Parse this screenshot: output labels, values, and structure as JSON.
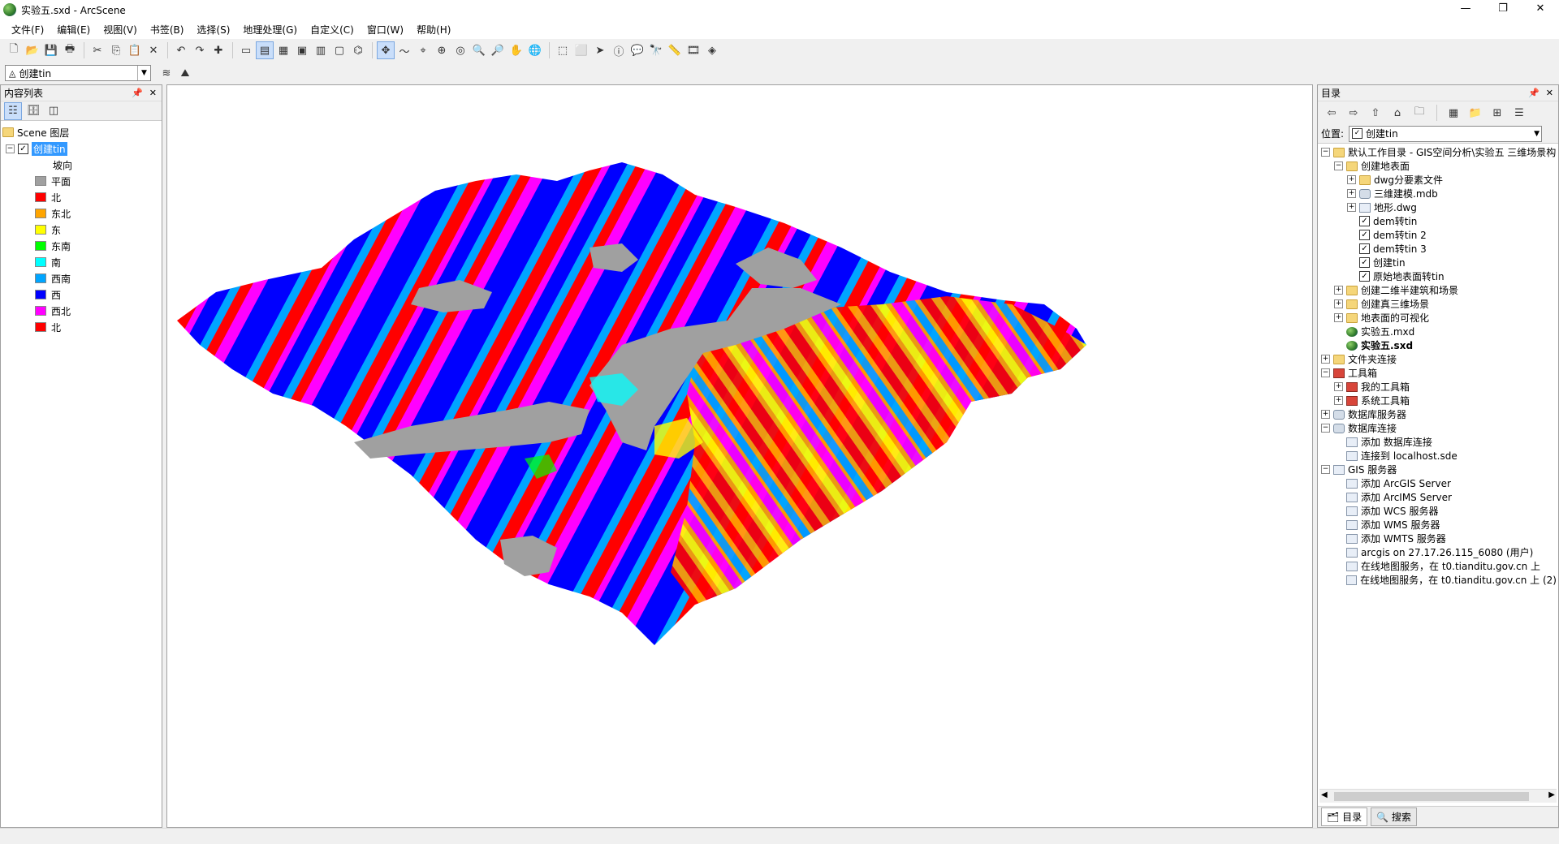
{
  "window": {
    "title": "实验五.sxd - ArcScene",
    "minimize": "—",
    "maximize": "❐",
    "close": "✕"
  },
  "menu": [
    "文件(F)",
    "编辑(E)",
    "视图(V)",
    "书签(B)",
    "选择(S)",
    "地理处理(G)",
    "自定义(C)",
    "窗口(W)",
    "帮助(H)"
  ],
  "layer_dropdown": {
    "value": "创建tin"
  },
  "toc": {
    "title": "内容列表",
    "root": "Scene 图层",
    "layer": "创建tin",
    "field": "坡向",
    "legend": [
      {
        "label": "平面",
        "color": "#a0a0a0"
      },
      {
        "label": "北",
        "color": "#ff0000"
      },
      {
        "label": "东北",
        "color": "#ffa500"
      },
      {
        "label": "东",
        "color": "#ffff00"
      },
      {
        "label": "东南",
        "color": "#00ff00"
      },
      {
        "label": "南",
        "color": "#00ffff"
      },
      {
        "label": "西南",
        "color": "#00a5ff"
      },
      {
        "label": "西",
        "color": "#0000ff"
      },
      {
        "label": "西北",
        "color": "#ff00ff"
      },
      {
        "label": "北",
        "color": "#ff0000"
      }
    ]
  },
  "catalog": {
    "title": "目录",
    "location_label": "位置:",
    "location_value": "创建tin",
    "items": {
      "i0": "默认工作目录 - GIS空间分析\\实验五 三维场景构",
      "i1": "创建地表面",
      "i2": "dwg分要素文件",
      "i3": "三维建模.mdb",
      "i4": "地形.dwg",
      "i5": "dem转tin",
      "i6": "dem转tin 2",
      "i7": "dem转tin 3",
      "i8": "创建tin",
      "i9": "原始地表面转tin",
      "i10": "创建二维半建筑和场景",
      "i11": "创建真三维场景",
      "i12": "地表面的可视化",
      "i13": "实验五.mxd",
      "i14": "实验五.sxd",
      "i15": "文件夹连接",
      "i16": "工具箱",
      "i17": "我的工具箱",
      "i18": "系统工具箱",
      "i19": "数据库服务器",
      "i20": "数据库连接",
      "i21": "添加 数据库连接",
      "i22": "连接到 localhost.sde",
      "i23": "GIS 服务器",
      "i24": "添加 ArcGIS Server",
      "i25": "添加 ArcIMS Server",
      "i26": "添加 WCS 服务器",
      "i27": "添加 WMS 服务器",
      "i28": "添加 WMTS 服务器",
      "i29": "arcgis on 27.17.26.115_6080 (用户)",
      "i30": "在线地图服务，在 t0.tianditu.gov.cn 上",
      "i31": "在线地图服务，在 t0.tianditu.gov.cn 上 (2)"
    },
    "tab_catalog": "目录",
    "tab_search": "搜索"
  },
  "colors": {
    "accent": "#3399ff",
    "flat": "#a0a0a0"
  }
}
